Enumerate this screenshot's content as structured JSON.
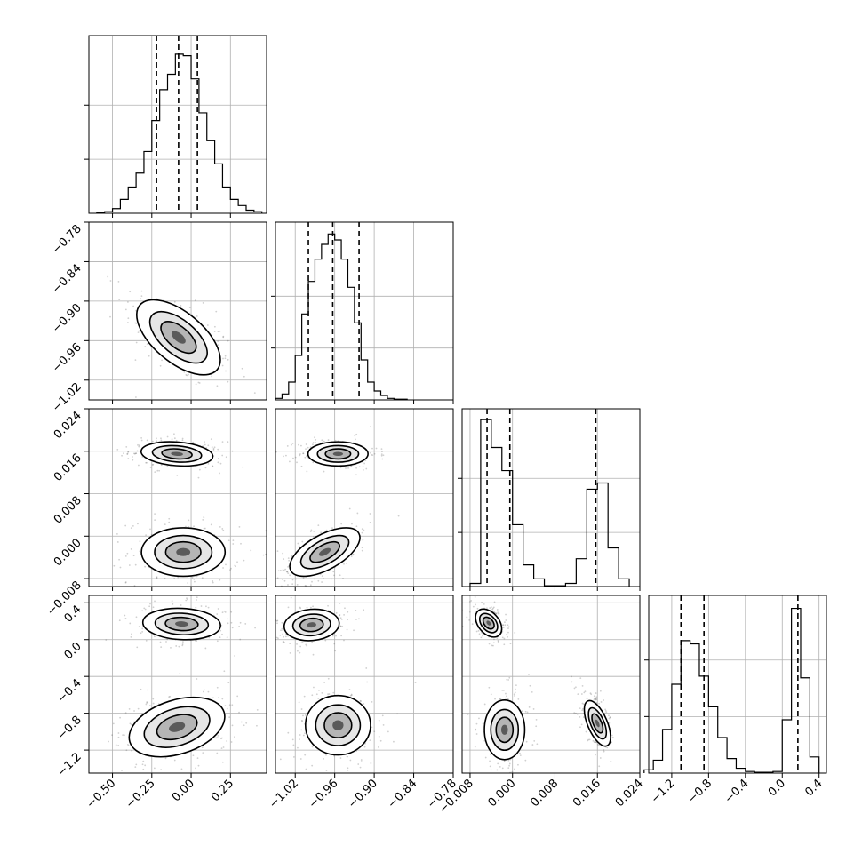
{
  "chart_data": {
    "type": "corner",
    "grid": true,
    "colors": {
      "line": "#000000",
      "grid": "#b0b0b0",
      "points": "#555555"
    },
    "parameters": [
      {
        "index": 0,
        "range": [
          -0.65,
          0.48
        ],
        "ticks": [
          -0.5,
          -0.25,
          0.0,
          0.25
        ],
        "tick_labels": [
          "−0.50",
          "−0.25",
          "0.00",
          "0.25"
        ]
      },
      {
        "index": 1,
        "range": [
          -1.05,
          -0.78
        ],
        "ticks": [
          -1.02,
          -0.96,
          -0.9,
          -0.84,
          -0.78
        ],
        "tick_labels": [
          "−1.02",
          "−0.96",
          "−0.90",
          "−0.84",
          "−0.78"
        ]
      },
      {
        "index": 2,
        "range": [
          -0.0095,
          0.024
        ],
        "ticks": [
          -0.008,
          0.0,
          0.008,
          0.016,
          0.024
        ],
        "tick_labels": [
          "−0.008",
          "0.000",
          "0.008",
          "0.016",
          "0.024"
        ]
      },
      {
        "index": 3,
        "range": [
          -1.45,
          0.48
        ],
        "ticks": [
          -1.2,
          -0.8,
          -0.4,
          0.0,
          0.4
        ],
        "tick_labels": [
          "−1.2",
          "−0.8",
          "−0.4",
          "0.0",
          "0.4"
        ]
      }
    ],
    "histograms": [
      {
        "param": 0,
        "bin_edges": [
          -0.6,
          -0.55,
          -0.5,
          -0.45,
          -0.4,
          -0.35,
          -0.3,
          -0.25,
          -0.2,
          -0.15,
          -0.1,
          -0.05,
          0.0,
          0.05,
          0.1,
          0.15,
          0.2,
          0.25,
          0.3,
          0.35,
          0.4,
          0.45
        ],
        "counts": [
          0.5,
          1,
          3,
          9,
          17,
          26,
          40,
          60,
          80,
          90,
          103,
          102,
          87,
          65,
          47,
          32,
          17,
          9,
          5,
          2,
          1
        ],
        "quantiles": [
          -0.22,
          -0.08,
          0.04
        ],
        "ymax": 115
      },
      {
        "param": 1,
        "bin_edges": [
          -1.05,
          -1.04,
          -1.03,
          -1.02,
          -1.01,
          -1.0,
          -0.99,
          -0.98,
          -0.97,
          -0.96,
          -0.95,
          -0.94,
          -0.93,
          -0.92,
          -0.91,
          -0.9,
          -0.89,
          -0.88,
          -0.87,
          -0.86,
          -0.85
        ],
        "counts": [
          1,
          4,
          12,
          30,
          58,
          80,
          95,
          105,
          112,
          108,
          95,
          76,
          52,
          27,
          12,
          6,
          3,
          1,
          0.5,
          0.5
        ],
        "quantiles": [
          -1.0,
          -0.963,
          -0.923
        ],
        "ymax": 120
      },
      {
        "param": 2,
        "bin_edges": [
          -0.008,
          -0.006,
          -0.004,
          -0.002,
          0.0,
          0.002,
          0.004,
          0.006,
          0.008,
          0.01,
          0.012,
          0.014,
          0.016,
          0.018,
          0.02,
          0.022
        ],
        "counts": [
          2,
          108,
          90,
          75,
          40,
          14,
          5,
          0.5,
          0.5,
          2,
          18,
          63,
          67,
          25,
          5
        ],
        "quantiles": [
          -0.0048,
          -0.0005,
          0.0157
        ],
        "ymax": 115
      },
      {
        "param": 3,
        "bin_edges": [
          -1.5,
          -1.4,
          -1.3,
          -1.2,
          -1.1,
          -1.0,
          -0.9,
          -0.8,
          -0.7,
          -0.6,
          -0.5,
          -0.4,
          -0.3,
          -0.2,
          -0.1,
          0.0,
          0.1,
          0.2,
          0.3,
          0.4
        ],
        "counts": [
          2,
          8,
          27,
          55,
          82,
          80,
          60,
          41,
          22,
          9,
          3,
          1,
          0.5,
          0.5,
          1,
          33,
          102,
          59,
          10
        ],
        "quantiles": [
          -1.1,
          -0.85,
          0.17
        ],
        "ymax": 110
      }
    ],
    "scatter_panels": [
      {
        "x": 0,
        "y": 1,
        "modes": [
          {
            "center": [
              -0.08,
              -0.955
            ],
            "sd": [
              0.14,
              0.03
            ],
            "corr": -0.6
          }
        ]
      },
      {
        "x": 0,
        "y": 2,
        "modes": [
          {
            "center": [
              -0.09,
              0.0155
            ],
            "sd": [
              0.12,
              0.0012
            ],
            "corr": -0.2
          },
          {
            "center": [
              -0.05,
              -0.003
            ],
            "sd": [
              0.14,
              0.0024
            ],
            "corr": 0.0
          }
        ]
      },
      {
        "x": 1,
        "y": 2,
        "modes": [
          {
            "center": [
              -0.955,
              0.0155
            ],
            "sd": [
              0.024,
              0.0012
            ],
            "corr": 0.0
          },
          {
            "center": [
              -0.975,
              -0.003
            ],
            "sd": [
              0.028,
              0.0024
            ],
            "corr": 0.6
          }
        ]
      },
      {
        "x": 0,
        "y": 3,
        "modes": [
          {
            "center": [
              -0.06,
              0.17
            ],
            "sd": [
              0.13,
              0.09
            ],
            "corr": -0.1
          },
          {
            "center": [
              -0.09,
              -0.95
            ],
            "sd": [
              0.16,
              0.17
            ],
            "corr": 0.35
          }
        ]
      },
      {
        "x": 1,
        "y": 3,
        "modes": [
          {
            "center": [
              -0.995,
              0.16
            ],
            "sd": [
              0.022,
              0.09
            ],
            "corr": 0.1
          },
          {
            "center": [
              -0.955,
              -0.93
            ],
            "sd": [
              0.026,
              0.17
            ],
            "corr": 0.0
          }
        ]
      },
      {
        "x": 2,
        "y": 3,
        "modes": [
          {
            "center": [
              -0.0045,
              0.18
            ],
            "sd": [
              0.0013,
              0.08
            ],
            "corr": -0.4
          },
          {
            "center": [
              -0.0015,
              -0.98
            ],
            "sd": [
              0.002,
              0.17
            ],
            "corr": 0.0
          },
          {
            "center": [
              0.016,
              -0.91
            ],
            "sd": [
              0.0013,
              0.13
            ],
            "corr": -0.6
          }
        ]
      }
    ]
  }
}
